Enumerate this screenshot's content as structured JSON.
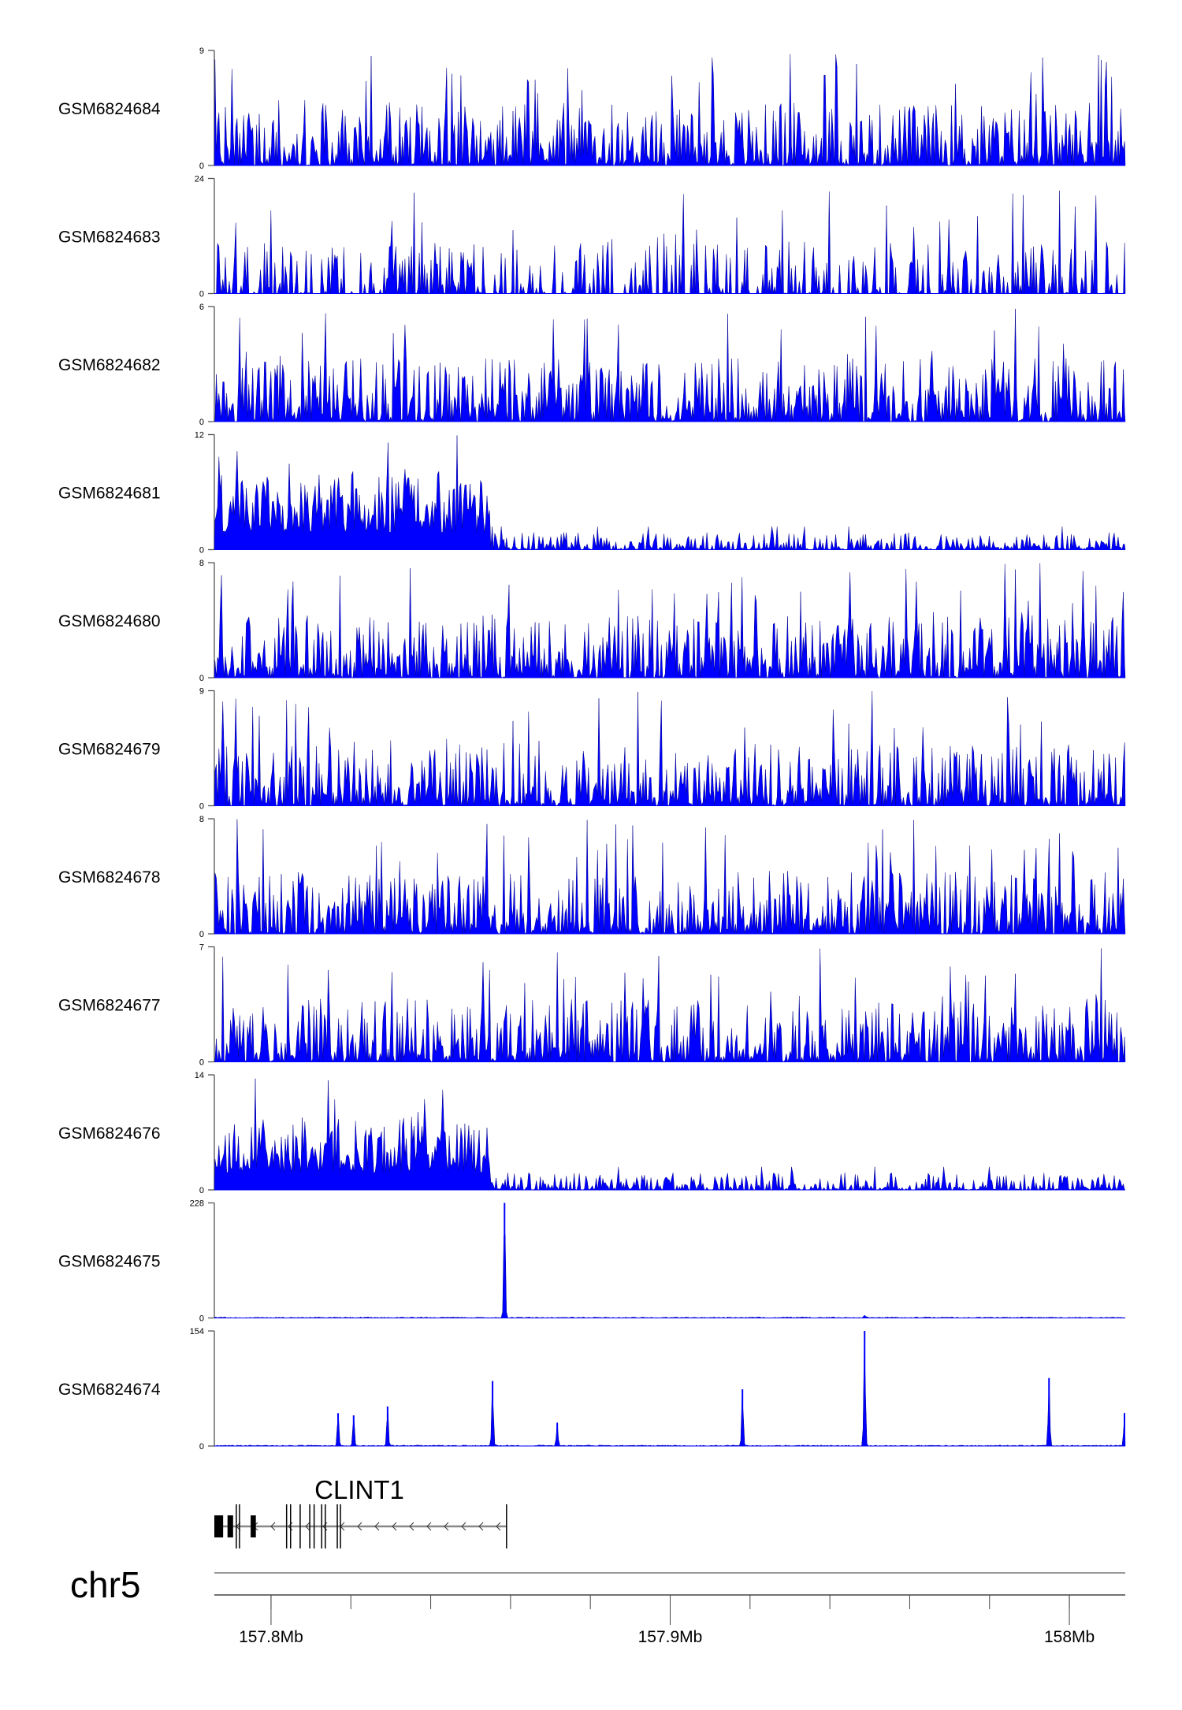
{
  "chart_data": {
    "type": "area",
    "title": "",
    "chromosome": "chr5",
    "xlim_mb": [
      157.7858,
      158.014
    ],
    "x_ticks": [
      {
        "value": 157.8,
        "label": "157.8Mb"
      },
      {
        "value": 157.9,
        "label": "157.9Mb"
      },
      {
        "value": 158.0,
        "label": "158Mb"
      }
    ],
    "minor_tick_step_mb": 0.02,
    "series_color": "#0000ff",
    "tracks": [
      {
        "name": "GSM6824684",
        "ymax": 9,
        "ymin": 0,
        "profile": "noise",
        "seed": 11
      },
      {
        "name": "GSM6824683",
        "ymax": 24,
        "ymin": 0,
        "profile": "sparse",
        "seed": 22
      },
      {
        "name": "GSM6824682",
        "ymax": 6,
        "ymin": 0,
        "profile": "noise",
        "seed": 33
      },
      {
        "name": "GSM6824681",
        "ymax": 12,
        "ymin": 0,
        "profile": "enriched-left",
        "break_mb": 157.8548,
        "seed": 44
      },
      {
        "name": "GSM6824680",
        "ymax": 8,
        "ymin": 0,
        "profile": "noise",
        "seed": 55
      },
      {
        "name": "GSM6824679",
        "ymax": 9,
        "ymin": 0,
        "profile": "noise",
        "seed": 66
      },
      {
        "name": "GSM6824678",
        "ymax": 8,
        "ymin": 0,
        "profile": "noise",
        "seed": 77
      },
      {
        "name": "GSM6824677",
        "ymax": 7,
        "ymin": 0,
        "profile": "noise",
        "seed": 88
      },
      {
        "name": "GSM6824676",
        "ymax": 14,
        "ymin": 0,
        "profile": "enriched-left",
        "break_mb": 157.8548,
        "seed": 99
      },
      {
        "name": "GSM6824675",
        "ymax": 228,
        "ymin": 0,
        "profile": "peaks",
        "seed": 5,
        "peaks": [
          {
            "mb": 157.8585,
            "value": 228
          },
          {
            "mb": 157.9487,
            "value": 5
          }
        ]
      },
      {
        "name": "GSM6824674",
        "ymax": 154,
        "ymin": 0,
        "profile": "peaks",
        "seed": 6,
        "peaks": [
          {
            "mb": 157.8168,
            "value": 44
          },
          {
            "mb": 157.8207,
            "value": 41
          },
          {
            "mb": 157.8292,
            "value": 53
          },
          {
            "mb": 157.8555,
            "value": 87
          },
          {
            "mb": 157.8717,
            "value": 31
          },
          {
            "mb": 157.9181,
            "value": 76
          },
          {
            "mb": 157.9487,
            "value": 154
          },
          {
            "mb": 157.9949,
            "value": 91
          },
          {
            "mb": 158.0138,
            "value": 44
          }
        ]
      }
    ],
    "gene": {
      "name": "CLINT1",
      "strand": "-",
      "start_mb": 157.7858,
      "end_mb": 157.859,
      "thick_exons": [
        [
          157.7858,
          157.788
        ],
        [
          157.7891,
          157.7905
        ],
        [
          157.7949,
          157.7962
        ]
      ],
      "thin_exons": [
        157.7913,
        157.7921,
        157.8039,
        157.8049,
        157.8073,
        157.8097,
        157.8108,
        157.8127,
        157.8136,
        157.8166,
        157.8174,
        157.859
      ]
    }
  }
}
